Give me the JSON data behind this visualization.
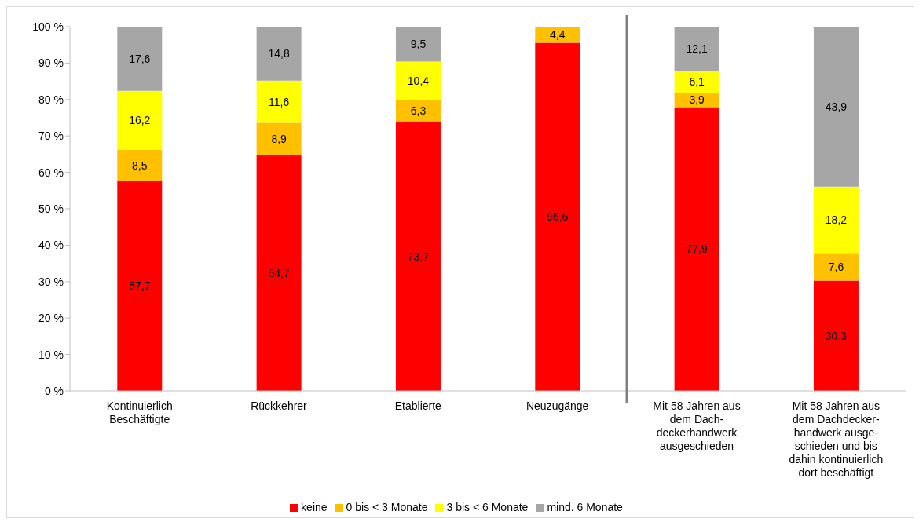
{
  "chart_data": {
    "type": "bar",
    "stacked": true,
    "legend": "bottom",
    "grid": false,
    "categories": [
      "Kontinuierlich\nBeschäftigte",
      "Rückkehrer",
      "Etablierte",
      "Neuzugänge",
      "Mit 58 Jahren aus\ndem Dach-\ndeckerhandwerk\nausgeschieden",
      "Mit 58 Jahren aus\ndem Dachdecker-\nhandwerk ausge-\nschieden und bis\ndahin kontinuierlich\ndort beschäftigt"
    ],
    "series": [
      {
        "name": "keine",
        "color": "#ff0000",
        "values": [
          57.7,
          64.7,
          73.7,
          95.6,
          77.9,
          30.3
        ],
        "value_labels": [
          "57,7",
          "64,7",
          "73,7",
          "95,6",
          "77,9",
          "30,3"
        ]
      },
      {
        "name": "0 bis < 3 Monate",
        "color": "#ffc000",
        "values": [
          8.5,
          8.9,
          6.3,
          4.4,
          3.9,
          7.6
        ],
        "value_labels": [
          "8,5",
          "8,9",
          "6,3",
          "4,4",
          "3,9",
          "7,6"
        ]
      },
      {
        "name": "3 bis < 6 Monate",
        "color": "#ffff00",
        "values": [
          16.2,
          11.6,
          10.4,
          null,
          6.1,
          18.2
        ],
        "value_labels": [
          "16,2",
          "11,6",
          "10,4",
          null,
          "6,1",
          "18,2"
        ]
      },
      {
        "name": "mind. 6 Monate",
        "color": "#a6a6a6",
        "values": [
          17.6,
          14.8,
          9.5,
          null,
          12.1,
          43.9
        ],
        "value_labels": [
          "17,6",
          "14,8",
          "9,5",
          null,
          "12,1",
          "43,9"
        ]
      }
    ],
    "ylim": [
      0,
      100
    ],
    "yticks": [
      {
        "value": 0,
        "label": "0 %"
      },
      {
        "value": 10,
        "label": "10 %"
      },
      {
        "value": 20,
        "label": "20 %"
      },
      {
        "value": 30,
        "label": "30 %"
      },
      {
        "value": 40,
        "label": "40 %"
      },
      {
        "value": 50,
        "label": "50 %"
      },
      {
        "value": 60,
        "label": "60 %"
      },
      {
        "value": 70,
        "label": "70 %"
      },
      {
        "value": 80,
        "label": "80 %"
      },
      {
        "value": 90,
        "label": "90 %"
      },
      {
        "value": 100,
        "label": "100 %"
      }
    ]
  }
}
